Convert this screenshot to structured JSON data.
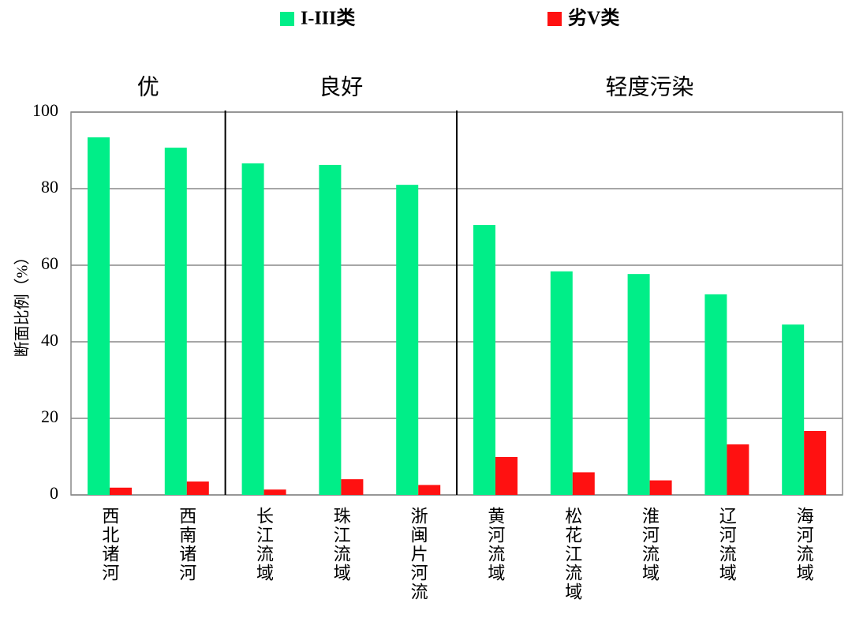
{
  "chart_data": {
    "type": "bar",
    "y_label": "断面比例（%）",
    "categories": [
      "西北诸河",
      "西南诸河",
      "长江流域",
      "珠江流域",
      "浙闽片河流",
      "黄河流域",
      "松花江流域",
      "淮河流域",
      "辽河流域",
      "海河流域"
    ],
    "groups": [
      {
        "label": "优",
        "count": 2
      },
      {
        "label": "良好",
        "count": 3
      },
      {
        "label": "轻度污染",
        "count": 5
      }
    ],
    "series": [
      {
        "name": "I-III类",
        "color": "#00ee88",
        "values": [
          93.4,
          90.7,
          86.6,
          86.2,
          81.0,
          70.5,
          58.4,
          57.7,
          52.4,
          44.5
        ]
      },
      {
        "name": "劣V类",
        "color": "#ff1111",
        "values": [
          1.9,
          3.5,
          1.4,
          4.1,
          2.6,
          9.9,
          5.9,
          3.8,
          13.2,
          16.7
        ]
      }
    ],
    "ylim": [
      0,
      100
    ],
    "yticks": [
      0,
      20,
      40,
      60,
      80,
      100
    ],
    "grid": true
  }
}
